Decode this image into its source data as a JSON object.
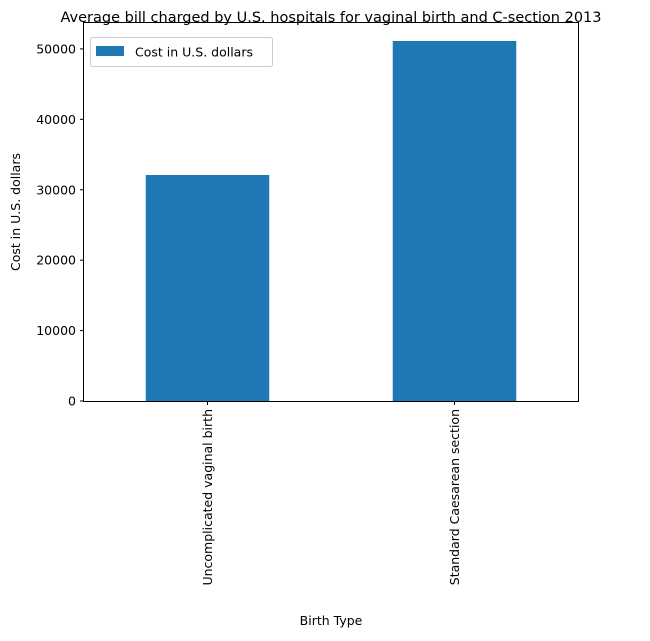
{
  "chart_data": {
    "type": "bar",
    "title": "Average bill charged by U.S. hospitals for vaginal birth and C-section 2013",
    "xlabel": "Birth Type",
    "ylabel": "Cost in U.S. dollars",
    "categories": [
      "Uncomplicated vaginal birth",
      "Standard Caesarean section"
    ],
    "series": [
      {
        "name": "Cost in U.S. dollars",
        "values": [
          32093,
          51125
        ],
        "color": "#1f77b4"
      }
    ],
    "ylim": [
      0,
      53681
    ],
    "yticks": [
      0,
      10000,
      20000,
      30000,
      40000,
      50000
    ],
    "ytick_labels": [
      "0",
      "10000",
      "20000",
      "30000",
      "40000",
      "50000"
    ],
    "grid": false,
    "legend_position": "top-left"
  }
}
